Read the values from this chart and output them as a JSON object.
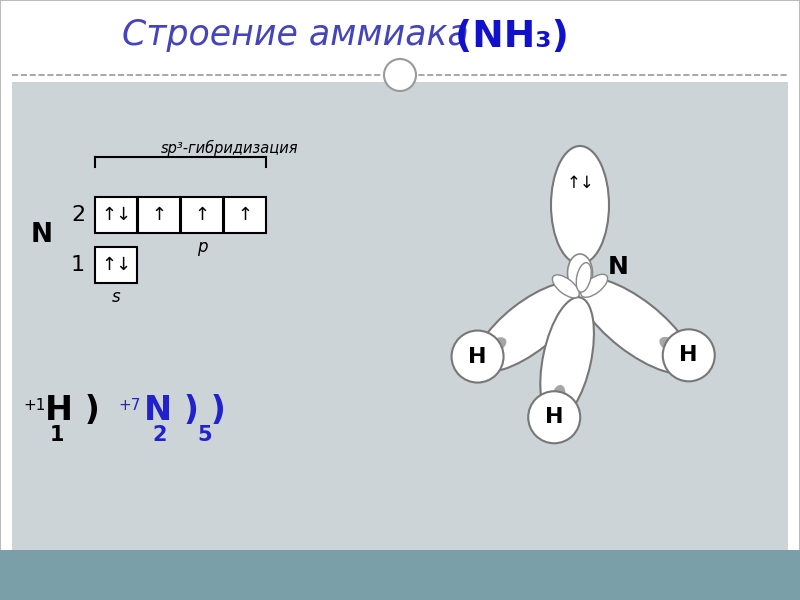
{
  "title_regular": "Строение аммиака",
  "title_bold": " (NH₃)",
  "title_regular_color": "#4444bb",
  "title_bold_color": "#1111cc",
  "panel_color": "#cdd4d8",
  "bottom_bar_color": "#7a9fa8",
  "sp3_label": "sp³-гибридизация",
  "row2_contents": [
    "↑↓",
    "↑",
    "↑",
    "↑"
  ],
  "row1_contents": [
    "↑↓"
  ],
  "lone_pair_arrows": "↑↓"
}
